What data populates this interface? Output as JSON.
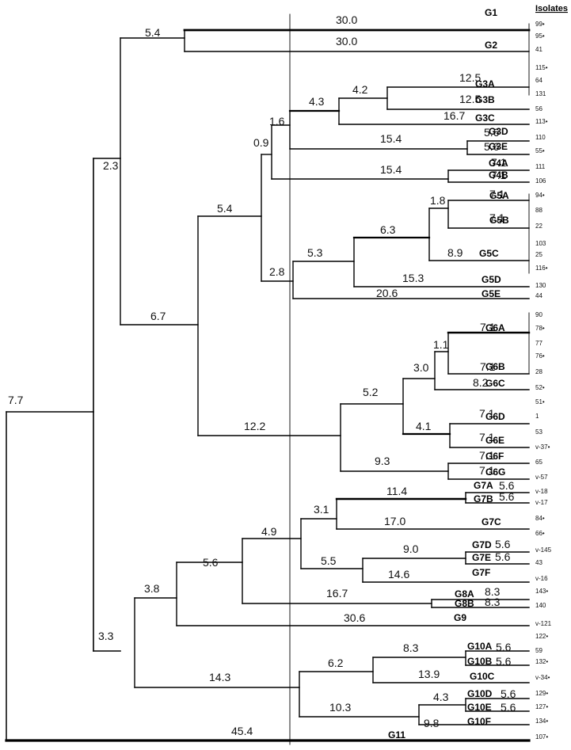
{
  "header": {
    "isolates_label": "Isolates"
  },
  "isolates": [
    "99",
    "95",
    "41",
    "115",
    "64",
    "131",
    "56",
    "113",
    "110",
    "55",
    "111",
    "106",
    "94",
    "88",
    "22",
    "103",
    "25",
    "116",
    "130",
    "44",
    "90",
    "78",
    "77",
    "76",
    "28",
    "52",
    "51",
    "1",
    "53",
    "v-37",
    "65",
    "v-57",
    "v-18",
    "v-17",
    "84",
    "66",
    "v-145",
    "43",
    "v-16",
    "143",
    "140",
    "v-121",
    "122",
    "59",
    "132",
    "v-34",
    "129",
    "127",
    "134",
    "107"
  ],
  "starred": [
    "99",
    "95",
    "115",
    "113",
    "55",
    "94",
    "116",
    "78",
    "76",
    "52",
    "51",
    "v-37",
    "84",
    "66",
    "143",
    "122",
    "132",
    "v-34",
    "129",
    "127",
    "134",
    "107"
  ],
  "groups": [
    "G1",
    "G2",
    "G3A",
    "G3B",
    "G3C",
    "G3D",
    "G3E",
    "G4A",
    "G4B",
    "G5A",
    "G5B",
    "G5C",
    "G5D",
    "G5E",
    "G6A",
    "G6B",
    "G6C",
    "G6D",
    "G6E",
    "G6F",
    "G6G",
    "G7A",
    "G7B",
    "G7C",
    "G7D",
    "G7E",
    "G7F",
    "G8A",
    "G8B",
    "G9",
    "G10A",
    "G10B",
    "G10C",
    "G10D",
    "G10E",
    "G10F",
    "G11"
  ],
  "branch_lengths": [
    "7.7",
    "2.3",
    "5.4",
    "30.0",
    "30.0",
    "6.7",
    "5.4",
    "0.9",
    "1.6",
    "4.3",
    "4.2",
    "12.5",
    "12.5",
    "16.7",
    "15.4",
    "5.6",
    "5.6",
    "15.4",
    "7.1",
    "7.1",
    "2.8",
    "5.3",
    "6.3",
    "1.8",
    "7.1",
    "7.1",
    "8.9",
    "15.3",
    "20.6",
    "12.2",
    "5.2",
    "3.0",
    "1.1",
    "7.1",
    "7.1",
    "8.2",
    "4.1",
    "7.1",
    "7.1",
    "9.3",
    "7.1",
    "7.1",
    "3.3",
    "3.8",
    "5.6",
    "4.9",
    "3.1",
    "11.4",
    "5.6",
    "5.6",
    "17.0",
    "5.5",
    "9.0",
    "5.6",
    "5.6",
    "14.6",
    "16.7",
    "8.3",
    "8.3",
    "30.6",
    "14.3",
    "6.2",
    "8.3",
    "5.6",
    "5.6",
    "13.9",
    "10.3",
    "4.3",
    "5.6",
    "5.6",
    "9.8",
    "45.4"
  ]
}
